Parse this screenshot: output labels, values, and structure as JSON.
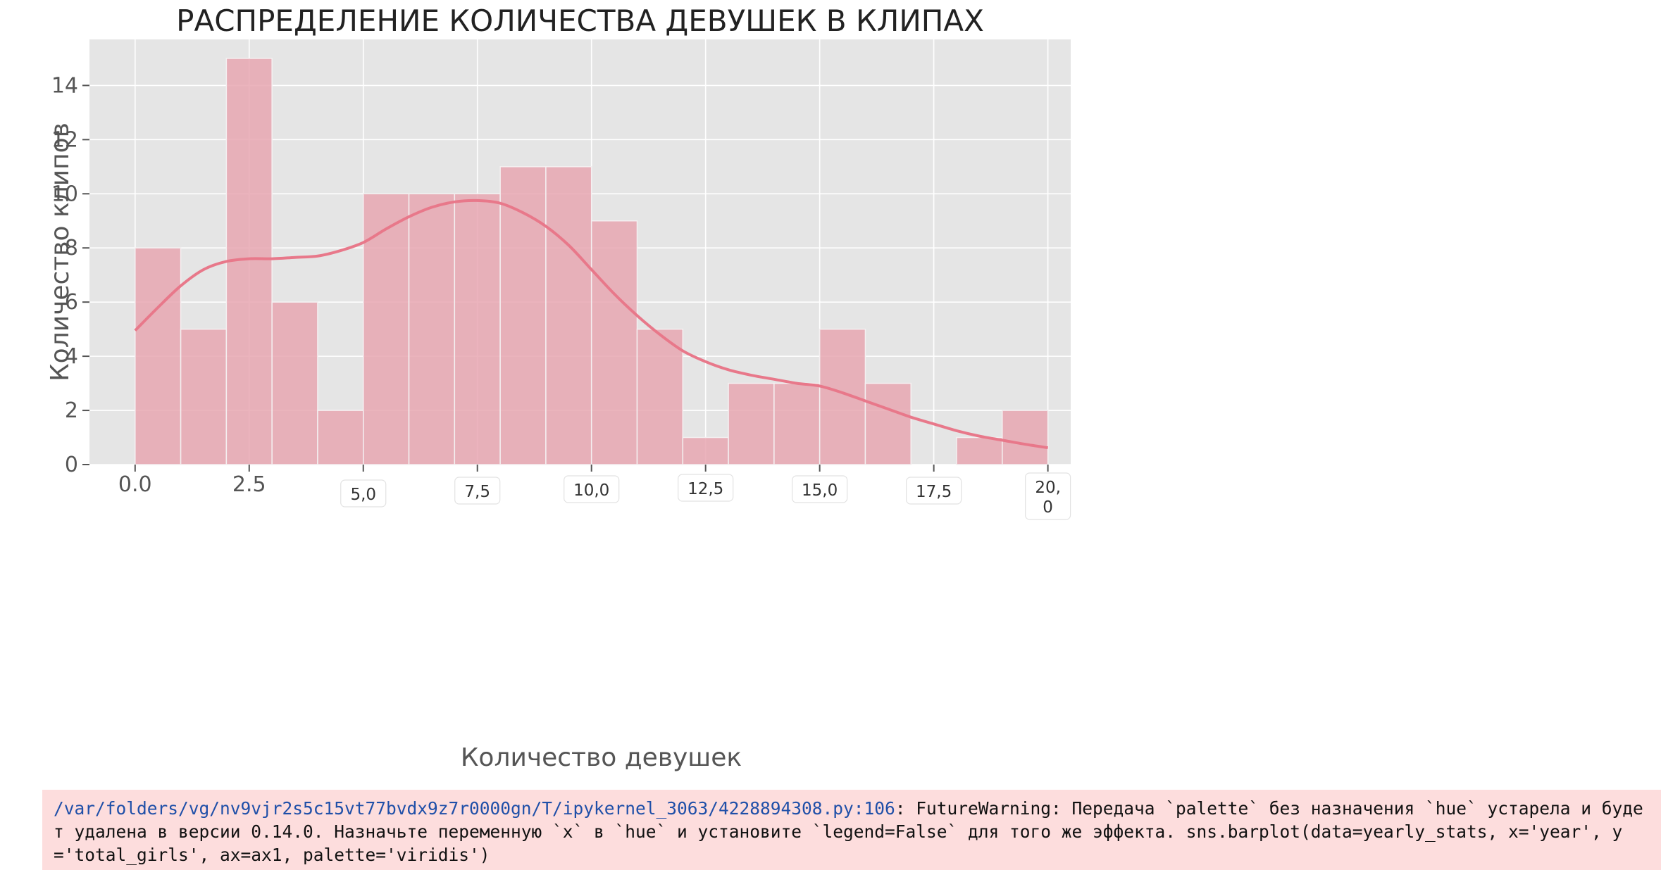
{
  "chart_data": {
    "type": "bar",
    "title": "РАСПРЕДЕЛЕНИЕ КОЛИЧЕСТВА ДЕВУШЕК В КЛИПАХ",
    "xlabel": "Количество девушек",
    "ylabel": "Количество клипов",
    "xlim": [
      -1,
      20.5
    ],
    "ylim": [
      0,
      15.7
    ],
    "grid": true,
    "bin_width": 1,
    "bins": [
      {
        "x0": 0,
        "x1": 1,
        "count": 8
      },
      {
        "x0": 1,
        "x1": 2,
        "count": 5
      },
      {
        "x0": 2,
        "x1": 3,
        "count": 15
      },
      {
        "x0": 3,
        "x1": 4,
        "count": 6
      },
      {
        "x0": 4,
        "x1": 5,
        "count": 2
      },
      {
        "x0": 5,
        "x1": 6,
        "count": 10
      },
      {
        "x0": 6,
        "x1": 7,
        "count": 10
      },
      {
        "x0": 7,
        "x1": 8,
        "count": 10
      },
      {
        "x0": 8,
        "x1": 9,
        "count": 11
      },
      {
        "x0": 9,
        "x1": 10,
        "count": 11
      },
      {
        "x0": 10,
        "x1": 11,
        "count": 9
      },
      {
        "x0": 11,
        "x1": 12,
        "count": 5
      },
      {
        "x0": 12,
        "x1": 13,
        "count": 1
      },
      {
        "x0": 13,
        "x1": 14,
        "count": 3
      },
      {
        "x0": 14,
        "x1": 15,
        "count": 3
      },
      {
        "x0": 15,
        "x1": 16,
        "count": 5
      },
      {
        "x0": 16,
        "x1": 17,
        "count": 3
      },
      {
        "x0": 17,
        "x1": 18,
        "count": 0
      },
      {
        "x0": 18,
        "x1": 19,
        "count": 1
      },
      {
        "x0": 19,
        "x1": 20,
        "count": 2
      }
    ],
    "kde": {
      "x": [
        0,
        0.5,
        1,
        1.5,
        2,
        2.5,
        3,
        3.5,
        4,
        4.5,
        5,
        5.5,
        6,
        6.5,
        7,
        7.5,
        8,
        8.5,
        9,
        9.5,
        10,
        10.5,
        11,
        11.5,
        12,
        12.5,
        13,
        13.5,
        14,
        14.5,
        15,
        15.5,
        16,
        16.5,
        17,
        17.5,
        18,
        18.5,
        19,
        19.5,
        20
      ],
      "y": [
        4.95,
        5.8,
        6.6,
        7.2,
        7.5,
        7.6,
        7.6,
        7.65,
        7.7,
        7.9,
        8.2,
        8.7,
        9.15,
        9.5,
        9.7,
        9.75,
        9.65,
        9.3,
        8.8,
        8.1,
        7.2,
        6.3,
        5.5,
        4.8,
        4.2,
        3.8,
        3.5,
        3.3,
        3.15,
        3.0,
        2.9,
        2.65,
        2.35,
        2.05,
        1.75,
        1.5,
        1.25,
        1.05,
        0.9,
        0.75,
        0.62
      ]
    },
    "y_ticks": [
      {
        "value": 0,
        "label": "0"
      },
      {
        "value": 2,
        "label": "2"
      },
      {
        "value": 4,
        "label": "4"
      },
      {
        "value": 6,
        "label": "6"
      },
      {
        "value": 8,
        "label": "8"
      },
      {
        "value": 10,
        "label": "10"
      },
      {
        "value": 12,
        "label": "12"
      },
      {
        "value": 14,
        "label": "14"
      }
    ],
    "x_ticks": [
      {
        "value": 0,
        "label": "0.0",
        "style": "plain"
      },
      {
        "value": 2.5,
        "label": "2.5",
        "style": "plain"
      },
      {
        "value": 5,
        "label": "5,0",
        "style": "tag"
      },
      {
        "value": 7.5,
        "label": "7,5",
        "style": "tag"
      },
      {
        "value": 10,
        "label": "10,0",
        "style": "tag"
      },
      {
        "value": 12.5,
        "label": "12,5",
        "style": "tag"
      },
      {
        "value": 15,
        "label": "15,0",
        "style": "tag"
      },
      {
        "value": 17.5,
        "label": "17,5",
        "style": "tag"
      },
      {
        "value": 20,
        "label": "20,\n0",
        "style": "tag"
      }
    ],
    "colors": {
      "bar": "#e8a7b2",
      "kde": "#e8788a",
      "plot_bg": "#e5e5e5",
      "grid": "#ffffff",
      "text": "#555555",
      "title": "#222222"
    }
  },
  "warning": {
    "path": "/var/folders/vg/nv9vjr2s5c15vt77bvdx9z7r0000gn/T/ipykernel_3063/4228894308.py:106",
    "message": ": FutureWarning: Передача `palette` без назначения `hue` устарела и будет удалена в версии 0.14.0. Назначьте переменную `x` в `hue` и установите `legend=False` для того же эффекта. sns.barplot(data=yearly_stats, x='year', y='total_girls', ax=ax1, palette='viridis')"
  }
}
